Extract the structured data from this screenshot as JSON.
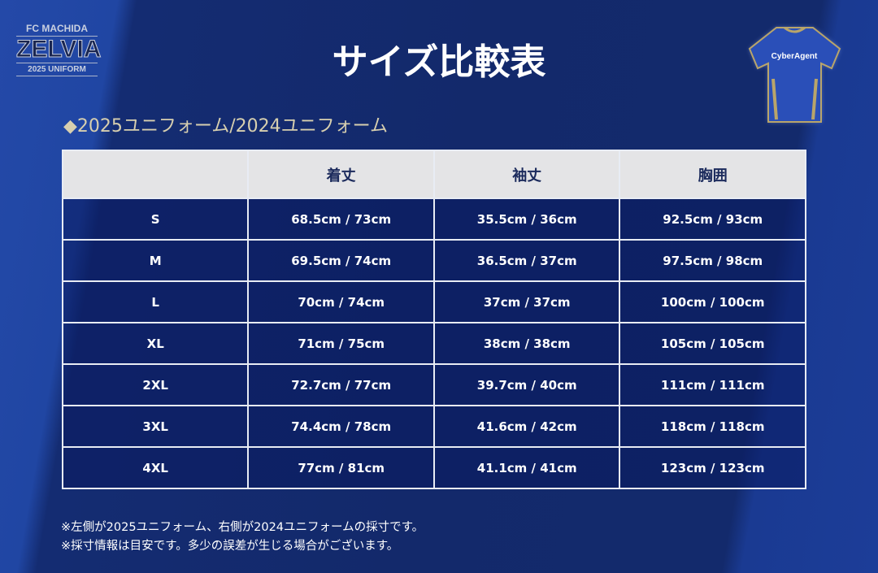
{
  "logo": {
    "line1": "FC MACHIDA",
    "line2": "ZELVIA",
    "line3": "2025 UNIFORM"
  },
  "title": "サイズ比較表",
  "shirt": {
    "sponsor": "CyberAgent"
  },
  "subtitle": "◆2025ユニフォーム/2024ユニフォーム",
  "table": {
    "headers": [
      "",
      "着丈",
      "袖丈",
      "胸囲"
    ],
    "rows": [
      [
        "S",
        "68.5cm / 73cm",
        "35.5cm / 36cm",
        "92.5cm / 93cm"
      ],
      [
        "M",
        "69.5cm / 74cm",
        "36.5cm / 37cm",
        "97.5cm / 98cm"
      ],
      [
        "L",
        "70cm / 74cm",
        "37cm / 37cm",
        "100cm / 100cm"
      ],
      [
        "XL",
        "71cm / 75cm",
        "38cm / 38cm",
        "105cm / 105cm"
      ],
      [
        "2XL",
        "72.7cm / 77cm",
        "39.7cm / 40cm",
        "111cm / 111cm"
      ],
      [
        "3XL",
        "74.4cm / 78cm",
        "41.6cm / 42cm",
        "118cm / 118cm"
      ],
      [
        "4XL",
        "77cm / 81cm",
        "41.1cm / 41cm",
        "123cm / 123cm"
      ]
    ]
  },
  "notes": [
    "※左側が2025ユニフォーム、右側が2024ユニフォームの採寸です。",
    "※採寸情報は目安です。多少の誤差が生じる場合がございます。"
  ]
}
